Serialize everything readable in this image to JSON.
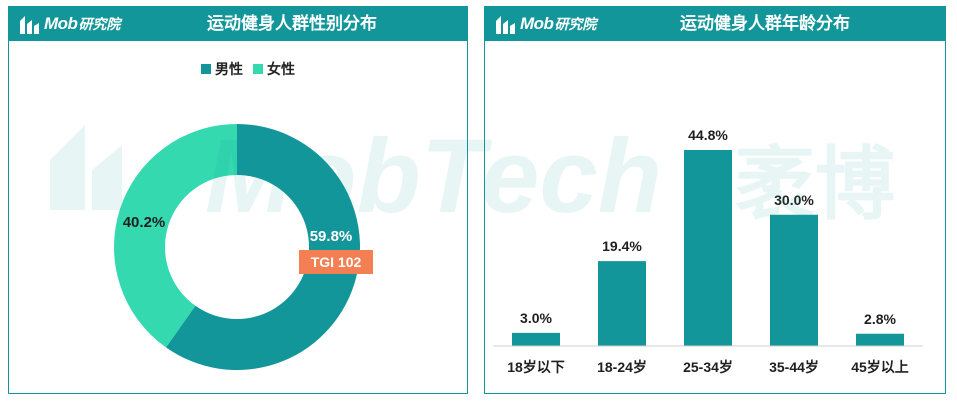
{
  "brand": {
    "logo_text": "Mob",
    "logo_sub": "研究院"
  },
  "watermark": {
    "text": "MobTech",
    "sub": "袤博"
  },
  "colors": {
    "header": "#13969a",
    "male": "#13969a",
    "female": "#34d9b0",
    "tgi_badge": "#f47f52",
    "bar": "#13969a"
  },
  "gender_panel": {
    "title": "运动健身人群性别分布",
    "tgi_label": "TGI 102"
  },
  "age_panel": {
    "title": "运动健身人群年龄分布"
  },
  "chart_data": [
    {
      "type": "pie",
      "title": "运动健身人群性别分布",
      "donut": true,
      "legend_position": "top",
      "labels": [
        "男性",
        "女性"
      ],
      "values": [
        59.8,
        40.2
      ],
      "value_labels": [
        "59.8%",
        "40.2%"
      ],
      "annotations": [
        "TGI 102"
      ]
    },
    {
      "type": "bar",
      "title": "运动健身人群年龄分布",
      "categories": [
        "18岁以下",
        "18-24岁",
        "25-34岁",
        "35-44岁",
        "45岁以上"
      ],
      "values": [
        3.0,
        19.4,
        44.8,
        30.0,
        2.8
      ],
      "value_labels": [
        "3.0%",
        "19.4%",
        "44.8%",
        "30.0%",
        "2.8%"
      ],
      "xlabel": "",
      "ylabel": "",
      "ylim": [
        0,
        48
      ],
      "grid": false
    }
  ]
}
